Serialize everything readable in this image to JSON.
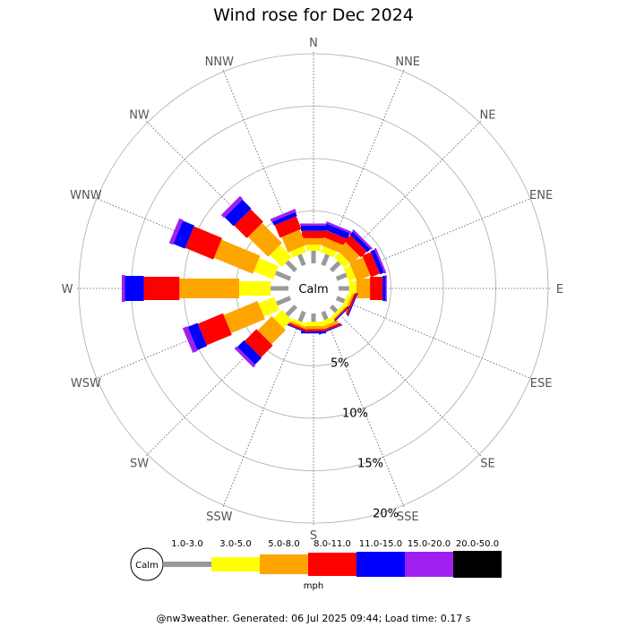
{
  "chart_data": {
    "type": "windrose",
    "title": "Wind rose for Dec 2024",
    "directions": [
      "N",
      "NNE",
      "NE",
      "ENE",
      "E",
      "ESE",
      "SE",
      "SSE",
      "S",
      "SSW",
      "SW",
      "WSW",
      "W",
      "WNW",
      "NW",
      "NNW"
    ],
    "radial_ticks": [
      "5%",
      "10%",
      "15%",
      "20%"
    ],
    "radial_max": 20,
    "calm_label": "Calm",
    "unit": "mph",
    "speed_bins": [
      {
        "label": "1.0-3.0",
        "color": "#999999"
      },
      {
        "label": "3.0-5.0",
        "color": "#ffff00"
      },
      {
        "label": "5.0-8.0",
        "color": "#ffa500"
      },
      {
        "label": "8.0-11.0",
        "color": "#ff0000"
      },
      {
        "label": "11.0-15.0",
        "color": "#0000ff"
      },
      {
        "label": "15.0-20.0",
        "color": "#a020f0"
      },
      {
        "label": "20.0-50.0",
        "color": "#000000"
      }
    ],
    "cumulative_percent": [
      [
        1.2,
        1.8,
        2.4,
        3.1,
        3.6,
        3.8,
        3.8
      ],
      [
        1.1,
        1.7,
        2.5,
        3.2,
        3.8,
        4.0,
        4.0
      ],
      [
        1.1,
        1.8,
        2.9,
        3.7,
        4.1,
        4.3,
        4.3
      ],
      [
        1.0,
        1.7,
        3.1,
        4.0,
        4.4,
        4.6,
        4.6
      ],
      [
        1.0,
        1.7,
        3.0,
        4.2,
        4.5,
        4.6,
        4.6
      ],
      [
        0.8,
        1.2,
        1.4,
        1.6,
        1.7,
        1.7,
        1.7
      ],
      [
        0.7,
        1.0,
        1.1,
        1.2,
        1.3,
        1.3,
        1.3
      ],
      [
        0.8,
        1.3,
        1.6,
        1.8,
        1.9,
        1.9,
        1.9
      ],
      [
        0.8,
        1.2,
        1.5,
        1.7,
        1.9,
        1.9,
        1.9
      ],
      [
        1.0,
        1.3,
        1.5,
        1.7,
        1.8,
        1.8,
        1.8
      ],
      [
        1.2,
        2.3,
        4.2,
        5.8,
        6.7,
        7.0,
        7.0
      ],
      [
        1.4,
        3.0,
        6.5,
        9.1,
        10.1,
        10.6,
        10.6
      ],
      [
        1.7,
        4.7,
        10.4,
        13.8,
        15.6,
        15.9,
        15.9
      ],
      [
        1.5,
        3.5,
        7.5,
        10.4,
        11.6,
        12.0,
        12.0
      ],
      [
        1.2,
        2.8,
        5.5,
        7.2,
        8.4,
        8.8,
        8.8
      ],
      [
        1.1,
        1.7,
        3.3,
        4.6,
        5.0,
        5.3,
        5.3
      ]
    ]
  },
  "footer": "@nw3weather. Generated: 06 Jul 2025 09:44; Load time: 0.17 s"
}
